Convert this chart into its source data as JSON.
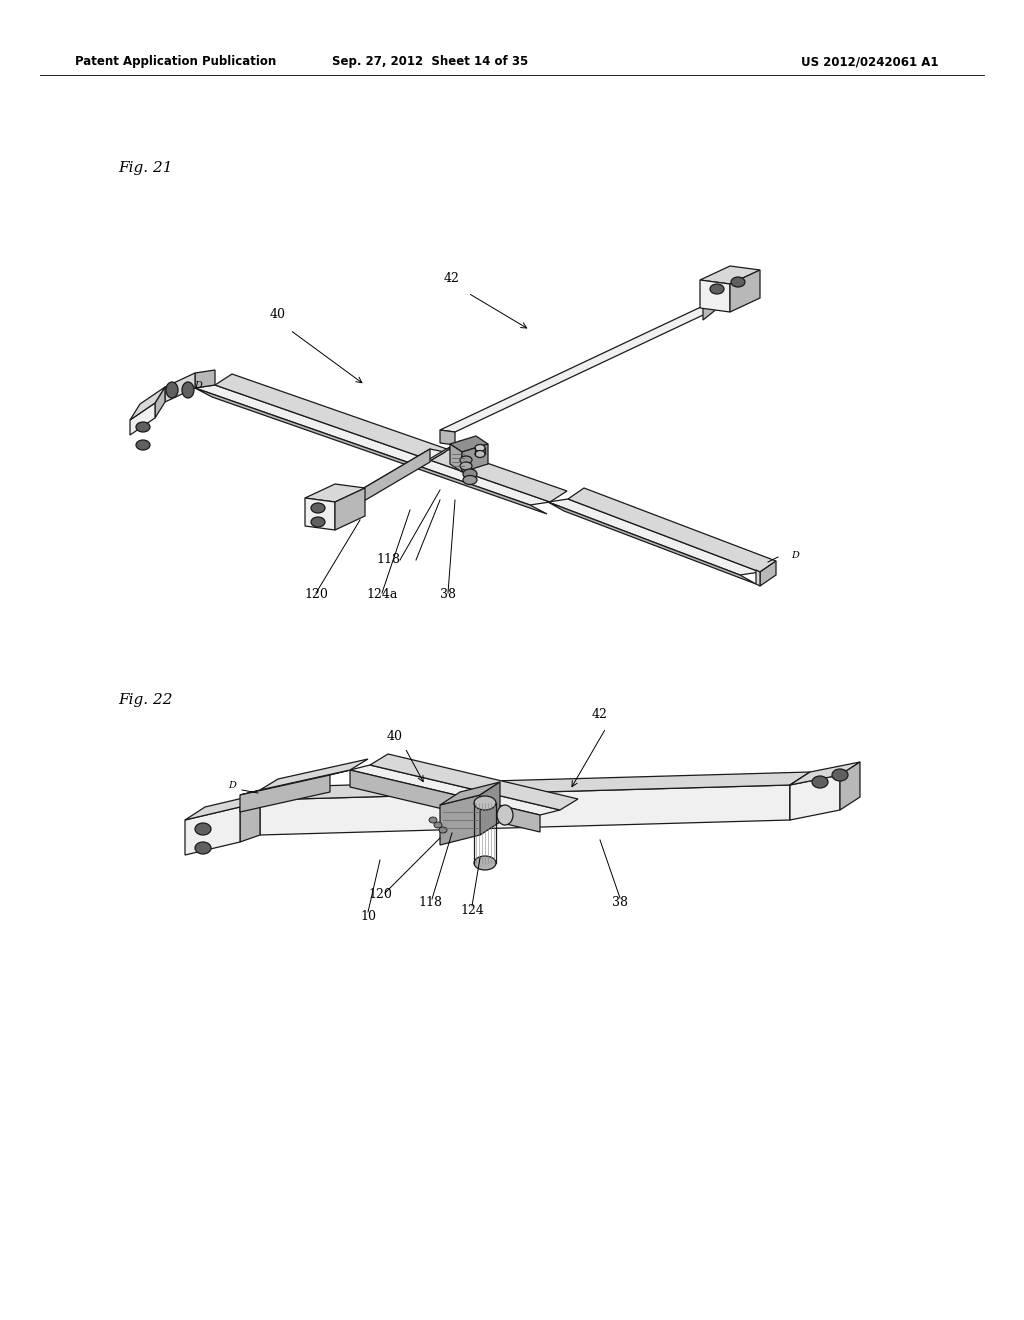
{
  "page_title_left": "Patent Application Publication",
  "page_title_center": "Sep. 27, 2012  Sheet 14 of 35",
  "page_title_right": "US 2012/0242061 A1",
  "fig21_label": "Fig. 21",
  "fig22_label": "Fig. 22",
  "background_color": "#ffffff",
  "text_color": "#000000",
  "line_color": "#1a1a1a",
  "lw": 0.9,
  "fc_light": "#f0f0f0",
  "fc_mid": "#d8d8d8",
  "fc_dark": "#b8b8b8",
  "fc_hole": "#606060"
}
